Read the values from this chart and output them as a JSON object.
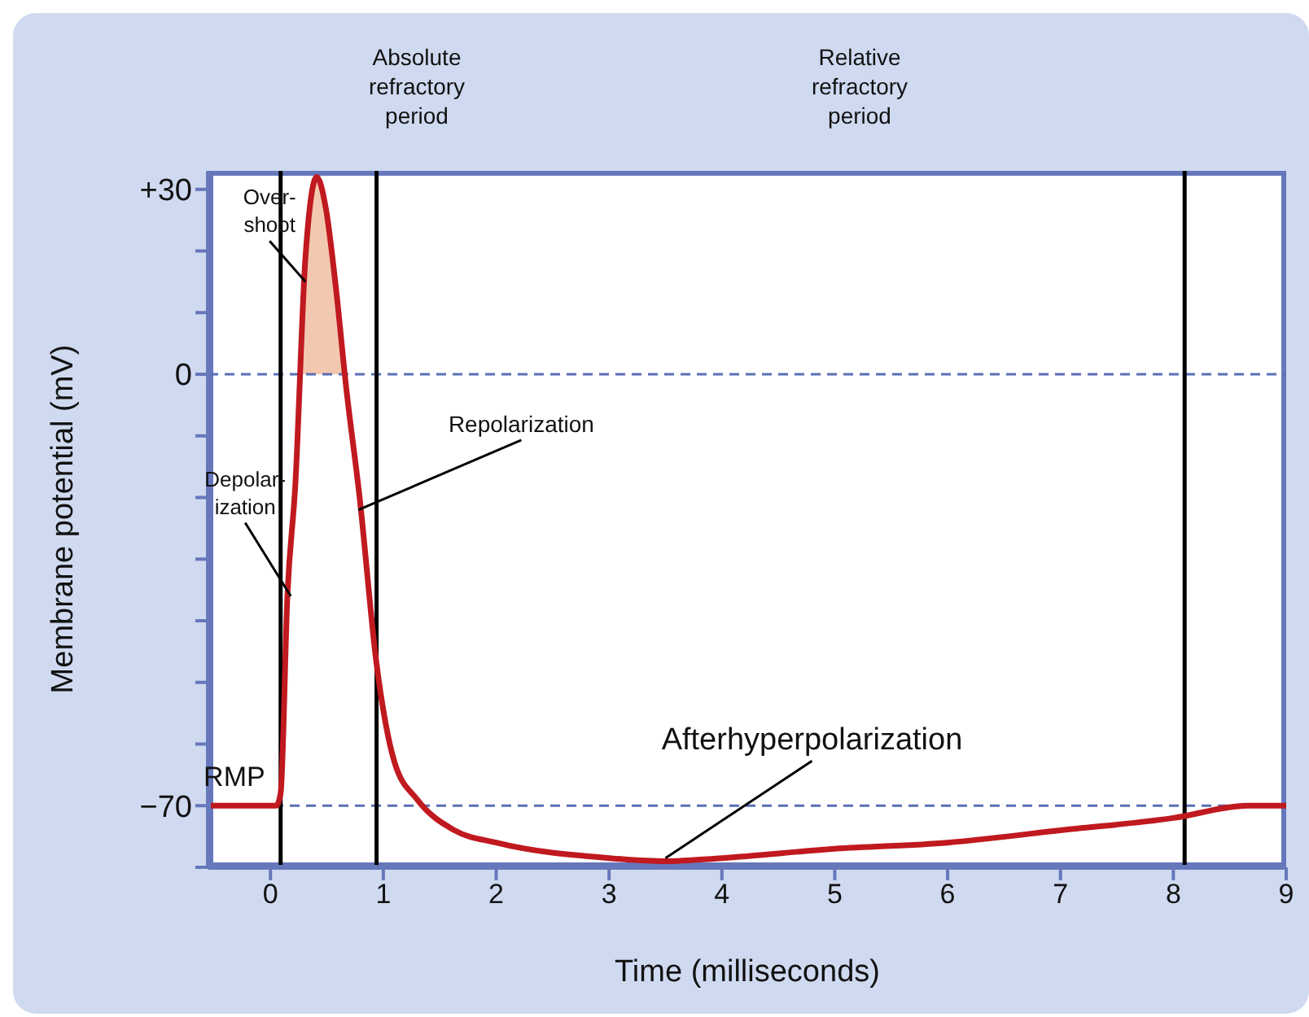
{
  "chart_data": {
    "type": "line",
    "xlabel": "Time (milliseconds)",
    "ylabel": "Membrane potential (mV)",
    "xlim": [
      -0.55,
      9
    ],
    "xticks": [
      0,
      1,
      2,
      3,
      4,
      5,
      6,
      7,
      8,
      9
    ],
    "ylim": [
      -80,
      33
    ],
    "yticks": [
      {
        "value": -80,
        "label": null
      },
      {
        "value": -70,
        "label": "−70"
      },
      {
        "value": -60,
        "label": null
      },
      {
        "value": -50,
        "label": null
      },
      {
        "value": -40,
        "label": null
      },
      {
        "value": -30,
        "label": null
      },
      {
        "value": -20,
        "label": null
      },
      {
        "value": -10,
        "label": null
      },
      {
        "value": 0,
        "label": "0"
      },
      {
        "value": 10,
        "label": null
      },
      {
        "value": 20,
        "label": null
      },
      {
        "value": 30,
        "label": "+30"
      }
    ],
    "marker": "none",
    "series": [
      {
        "type": "area",
        "color": "#f2c8b0",
        "x": [
          0.26,
          0.31,
          0.41,
          0.49,
          0.58,
          0.66
        ],
        "values": [
          0,
          19,
          32,
          27,
          14,
          0
        ]
      },
      {
        "color": "#c0191f",
        "line_style": "solid",
        "x": [
          -0.55,
          0.05,
          0.09,
          0.15,
          0.22,
          0.31,
          0.41,
          0.49,
          0.58,
          0.67,
          0.79,
          0.94,
          1.1,
          1.3,
          1.63,
          2,
          3,
          3.5,
          4,
          5,
          6,
          7,
          8,
          8.66,
          9
        ],
        "values": [
          -70,
          -70,
          -68,
          -36,
          -18,
          19,
          32,
          27,
          14,
          -2,
          -20,
          -47,
          -63,
          -69,
          -74,
          -76,
          -78.5,
          -79,
          -78.5,
          -77,
          -76,
          -74,
          -72,
          -70,
          -70
        ]
      }
    ],
    "ref_lines": [
      {
        "axis": "y",
        "value": 0,
        "color": "#5a6fb5",
        "line_style": "dashed"
      },
      {
        "axis": "y",
        "value": -70,
        "color": "#5a6fb5",
        "line_style": "dashed"
      },
      {
        "axis": "x",
        "value": 0.09,
        "color": "#000000",
        "line_style": "solid"
      },
      {
        "axis": "x",
        "value": 0.94,
        "color": "#000000",
        "line_style": "solid"
      },
      {
        "axis": "x",
        "value": 8.1,
        "color": "#000000",
        "line_style": "solid"
      }
    ],
    "annotations": [
      "Absolute\nrefractory\nperiod",
      "Relative\nrefractory\nperiod",
      {
        "text": "Over-\nshoot",
        "x": 0.31,
        "y": 15
      },
      {
        "text": "Depolar-\nization",
        "x": 0.18,
        "y": -36
      },
      {
        "text": "Repolarization",
        "x": 0.78,
        "y": -22
      },
      {
        "text": "Afterhyperpolarization",
        "x": 3.5,
        "y": -78.5
      },
      {
        "text": "RMP",
        "x": -0.32,
        "y": -70
      }
    ]
  }
}
